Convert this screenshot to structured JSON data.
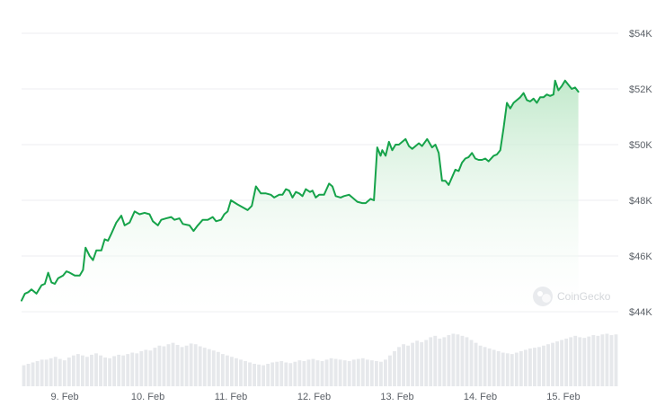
{
  "watermark": {
    "text": "CoinGecko"
  },
  "chart_data": {
    "type": "area",
    "title": "",
    "xlabel": "",
    "ylabel": "",
    "ylim": [
      44000,
      54000
    ],
    "yticks": [
      44000,
      46000,
      48000,
      50000,
      52000,
      54000
    ],
    "ytick_labels": [
      "$44K",
      "$46K",
      "$48K",
      "$50K",
      "$52K",
      "$54K"
    ],
    "xlim": [
      8.48,
      15.66
    ],
    "xticks": [
      9,
      10,
      11,
      12,
      13,
      14,
      15
    ],
    "xtick_labels": [
      "9. Feb",
      "10. Feb",
      "11. Feb",
      "12. Feb",
      "13. Feb",
      "14. Feb",
      "15. Feb"
    ],
    "grid": true,
    "colors": {
      "line": "#16a34a",
      "fill_top": "#bfe8c9",
      "volume": "#e6e8eb",
      "grid": "#eceef0"
    },
    "series": [
      {
        "kind": "price",
        "points": [
          [
            8.48,
            44400
          ],
          [
            8.52,
            44650
          ],
          [
            8.56,
            44700
          ],
          [
            8.6,
            44800
          ],
          [
            8.66,
            44650
          ],
          [
            8.72,
            44950
          ],
          [
            8.76,
            45000
          ],
          [
            8.8,
            45400
          ],
          [
            8.84,
            45050
          ],
          [
            8.88,
            45000
          ],
          [
            8.92,
            45200
          ],
          [
            8.98,
            45300
          ],
          [
            9.02,
            45450
          ],
          [
            9.06,
            45400
          ],
          [
            9.12,
            45300
          ],
          [
            9.18,
            45300
          ],
          [
            9.22,
            45500
          ],
          [
            9.25,
            46300
          ],
          [
            9.3,
            46000
          ],
          [
            9.34,
            45850
          ],
          [
            9.38,
            46200
          ],
          [
            9.44,
            46200
          ],
          [
            9.48,
            46600
          ],
          [
            9.52,
            46550
          ],
          [
            9.56,
            46800
          ],
          [
            9.62,
            47200
          ],
          [
            9.68,
            47450
          ],
          [
            9.72,
            47100
          ],
          [
            9.78,
            47200
          ],
          [
            9.84,
            47600
          ],
          [
            9.9,
            47500
          ],
          [
            9.96,
            47550
          ],
          [
            10.02,
            47500
          ],
          [
            10.06,
            47250
          ],
          [
            10.12,
            47100
          ],
          [
            10.16,
            47300
          ],
          [
            10.22,
            47350
          ],
          [
            10.28,
            47400
          ],
          [
            10.32,
            47300
          ],
          [
            10.38,
            47350
          ],
          [
            10.42,
            47150
          ],
          [
            10.5,
            47100
          ],
          [
            10.55,
            46900
          ],
          [
            10.6,
            47100
          ],
          [
            10.66,
            47300
          ],
          [
            10.72,
            47300
          ],
          [
            10.78,
            47400
          ],
          [
            10.82,
            47250
          ],
          [
            10.88,
            47300
          ],
          [
            10.92,
            47500
          ],
          [
            10.96,
            47600
          ],
          [
            11.0,
            48000
          ],
          [
            11.08,
            47850
          ],
          [
            11.14,
            47750
          ],
          [
            11.2,
            47650
          ],
          [
            11.25,
            47800
          ],
          [
            11.3,
            48500
          ],
          [
            11.36,
            48250
          ],
          [
            11.42,
            48250
          ],
          [
            11.48,
            48200
          ],
          [
            11.52,
            48100
          ],
          [
            11.58,
            48200
          ],
          [
            11.62,
            48200
          ],
          [
            11.66,
            48400
          ],
          [
            11.7,
            48350
          ],
          [
            11.74,
            48100
          ],
          [
            11.78,
            48300
          ],
          [
            11.82,
            48250
          ],
          [
            11.86,
            48150
          ],
          [
            11.9,
            48400
          ],
          [
            11.95,
            48300
          ],
          [
            11.98,
            48350
          ],
          [
            12.02,
            48100
          ],
          [
            12.06,
            48200
          ],
          [
            12.12,
            48200
          ],
          [
            12.18,
            48600
          ],
          [
            12.22,
            48500
          ],
          [
            12.26,
            48150
          ],
          [
            12.32,
            48100
          ],
          [
            12.36,
            48150
          ],
          [
            12.42,
            48200
          ],
          [
            12.46,
            48100
          ],
          [
            12.52,
            47950
          ],
          [
            12.58,
            47900
          ],
          [
            12.62,
            47900
          ],
          [
            12.68,
            48050
          ],
          [
            12.72,
            48000
          ],
          [
            12.76,
            49900
          ],
          [
            12.8,
            49600
          ],
          [
            12.82,
            49800
          ],
          [
            12.86,
            49600
          ],
          [
            12.9,
            50100
          ],
          [
            12.94,
            49800
          ],
          [
            12.98,
            50000
          ],
          [
            13.02,
            50000
          ],
          [
            13.06,
            50100
          ],
          [
            13.1,
            50200
          ],
          [
            13.14,
            49950
          ],
          [
            13.18,
            49850
          ],
          [
            13.22,
            49950
          ],
          [
            13.26,
            50050
          ],
          [
            13.3,
            49950
          ],
          [
            13.36,
            50200
          ],
          [
            13.42,
            49900
          ],
          [
            13.46,
            50000
          ],
          [
            13.5,
            49700
          ],
          [
            13.54,
            48700
          ],
          [
            13.58,
            48700
          ],
          [
            13.62,
            48550
          ],
          [
            13.7,
            49100
          ],
          [
            13.74,
            49050
          ],
          [
            13.78,
            49350
          ],
          [
            13.82,
            49500
          ],
          [
            13.86,
            49550
          ],
          [
            13.9,
            49700
          ],
          [
            13.94,
            49500
          ],
          [
            13.98,
            49450
          ],
          [
            14.02,
            49450
          ],
          [
            14.06,
            49500
          ],
          [
            14.1,
            49400
          ],
          [
            14.16,
            49600
          ],
          [
            14.2,
            49650
          ],
          [
            14.24,
            49800
          ],
          [
            14.28,
            50600
          ],
          [
            14.32,
            51500
          ],
          [
            14.36,
            51300
          ],
          [
            14.4,
            51500
          ],
          [
            14.44,
            51600
          ],
          [
            14.48,
            51700
          ],
          [
            14.52,
            51850
          ],
          [
            14.56,
            51600
          ],
          [
            14.6,
            51550
          ],
          [
            14.64,
            51650
          ],
          [
            14.68,
            51500
          ],
          [
            14.72,
            51700
          ],
          [
            14.76,
            51700
          ],
          [
            14.8,
            51800
          ],
          [
            14.84,
            51750
          ],
          [
            14.88,
            51800
          ],
          [
            14.9,
            52300
          ],
          [
            14.94,
            51950
          ],
          [
            14.98,
            52100
          ],
          [
            15.02,
            52300
          ],
          [
            15.06,
            52150
          ],
          [
            15.1,
            52000
          ],
          [
            15.14,
            52050
          ],
          [
            15.18,
            51900
          ]
        ]
      },
      {
        "kind": "volume",
        "relative_values": [
          0.3,
          0.32,
          0.34,
          0.36,
          0.38,
          0.38,
          0.4,
          0.42,
          0.39,
          0.37,
          0.41,
          0.44,
          0.46,
          0.44,
          0.42,
          0.45,
          0.47,
          0.44,
          0.41,
          0.4,
          0.43,
          0.45,
          0.44,
          0.46,
          0.48,
          0.47,
          0.5,
          0.52,
          0.51,
          0.55,
          0.58,
          0.57,
          0.6,
          0.62,
          0.59,
          0.56,
          0.58,
          0.61,
          0.6,
          0.57,
          0.55,
          0.53,
          0.51,
          0.49,
          0.46,
          0.44,
          0.42,
          0.4,
          0.38,
          0.36,
          0.34,
          0.32,
          0.31,
          0.3,
          0.32,
          0.34,
          0.35,
          0.36,
          0.34,
          0.33,
          0.35,
          0.37,
          0.36,
          0.38,
          0.39,
          0.37,
          0.36,
          0.38,
          0.4,
          0.39,
          0.38,
          0.37,
          0.36,
          0.38,
          0.39,
          0.4,
          0.38,
          0.37,
          0.36,
          0.35,
          0.38,
          0.44,
          0.5,
          0.56,
          0.6,
          0.58,
          0.62,
          0.65,
          0.63,
          0.66,
          0.7,
          0.72,
          0.68,
          0.7,
          0.73,
          0.75,
          0.74,
          0.72,
          0.7,
          0.66,
          0.62,
          0.58,
          0.56,
          0.54,
          0.52,
          0.5,
          0.48,
          0.47,
          0.46,
          0.48,
          0.5,
          0.52,
          0.54,
          0.55,
          0.56,
          0.58,
          0.6,
          0.62,
          0.64,
          0.66,
          0.68,
          0.7,
          0.72,
          0.7,
          0.69,
          0.71,
          0.73,
          0.72,
          0.74,
          0.75,
          0.73,
          0.74
        ]
      }
    ]
  }
}
